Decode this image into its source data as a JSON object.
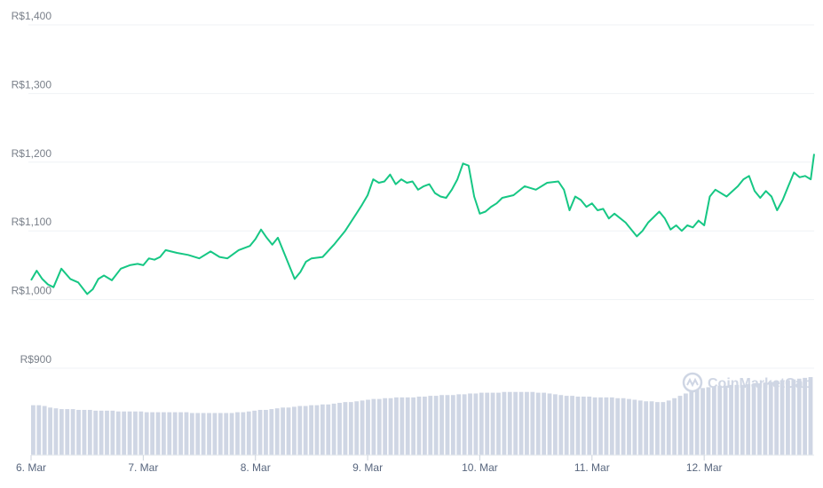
{
  "chart_data": {
    "type": "line",
    "currency_prefix": "R$",
    "y_ticks": [
      "R$1,400",
      "R$1,300",
      "R$1,200",
      "R$1,100",
      "R$1,000",
      "R$900"
    ],
    "y_tick_values": [
      1400,
      1300,
      1200,
      1100,
      1000,
      900
    ],
    "x_ticks": [
      "6. Mar",
      "7. Mar",
      "8. Mar",
      "9. Mar",
      "10. Mar",
      "11. Mar",
      "12. Mar"
    ],
    "x_tick_days": [
      6,
      7,
      8,
      9,
      10,
      11,
      12
    ],
    "ylim": [
      900,
      1400
    ],
    "xlim": [
      6,
      12.98
    ],
    "grid": true,
    "colors": {
      "line": "#16c784",
      "volume": "#cfd6e4",
      "grid": "#eff2f5"
    },
    "series": [
      {
        "x": [
          6.0,
          6.05,
          6.1,
          6.15,
          6.2,
          6.27,
          6.35,
          6.42,
          6.5,
          6.55,
          6.6,
          6.65,
          6.72,
          6.8,
          6.88,
          6.95,
          7.0,
          7.05,
          7.1,
          7.15,
          7.2,
          7.3,
          7.4,
          7.5,
          7.6,
          7.68,
          7.75,
          7.85,
          7.95,
          8.0,
          8.05,
          8.1,
          8.15,
          8.2,
          8.25,
          8.3,
          8.35,
          8.4,
          8.45,
          8.5,
          8.6,
          8.7,
          8.8,
          8.9,
          8.95,
          9.0,
          9.05,
          9.1,
          9.15,
          9.2,
          9.25,
          9.3,
          9.35,
          9.4,
          9.45,
          9.5,
          9.55,
          9.6,
          9.65,
          9.7,
          9.75,
          9.8,
          9.85,
          9.9,
          9.95,
          10.0,
          10.05,
          10.1,
          10.15,
          10.2,
          10.3,
          10.4,
          10.5,
          10.6,
          10.7,
          10.75,
          10.8,
          10.85,
          10.9,
          10.95,
          11.0,
          11.05,
          11.1,
          11.15,
          11.2,
          11.3,
          11.4,
          11.45,
          11.5,
          11.6,
          11.65,
          11.7,
          11.75,
          11.8,
          11.85,
          11.9,
          11.95,
          12.0,
          12.05,
          12.1,
          12.2,
          12.3,
          12.35,
          12.4,
          12.45,
          12.5,
          12.55,
          12.6,
          12.65,
          12.7,
          12.75,
          12.8,
          12.85,
          12.9,
          12.95,
          12.98
        ],
        "y": [
          1028,
          1042,
          1030,
          1022,
          1018,
          1045,
          1030,
          1025,
          1008,
          1015,
          1030,
          1035,
          1028,
          1045,
          1050,
          1052,
          1050,
          1060,
          1058,
          1062,
          1072,
          1068,
          1065,
          1060,
          1070,
          1062,
          1060,
          1072,
          1078,
          1088,
          1102,
          1090,
          1080,
          1090,
          1070,
          1050,
          1030,
          1040,
          1055,
          1060,
          1062,
          1080,
          1100,
          1125,
          1138,
          1152,
          1175,
          1170,
          1172,
          1182,
          1168,
          1175,
          1170,
          1172,
          1160,
          1165,
          1168,
          1155,
          1150,
          1148,
          1160,
          1175,
          1198,
          1195,
          1150,
          1125,
          1128,
          1135,
          1140,
          1148,
          1152,
          1165,
          1160,
          1170,
          1172,
          1160,
          1130,
          1150,
          1145,
          1135,
          1140,
          1130,
          1132,
          1118,
          1125,
          1112,
          1092,
          1100,
          1112,
          1128,
          1118,
          1102,
          1108,
          1100,
          1108,
          1105,
          1115,
          1108,
          1150,
          1160,
          1150,
          1165,
          1175,
          1180,
          1158,
          1148,
          1158,
          1150,
          1130,
          1145,
          1165,
          1185,
          1178,
          1180,
          1175,
          1212
        ]
      }
    ],
    "volume": [
      64,
      64,
      63,
      61,
      60,
      59,
      59,
      59,
      58,
      58,
      58,
      57,
      57,
      57,
      57,
      56,
      56,
      56,
      56,
      56,
      55,
      55,
      55,
      55,
      55,
      55,
      55,
      55,
      54,
      54,
      54,
      54,
      54,
      54,
      54,
      54,
      55,
      55,
      56,
      57,
      58,
      58,
      59,
      60,
      61,
      61,
      62,
      63,
      63,
      64,
      64,
      65,
      65,
      66,
      67,
      68,
      68,
      69,
      70,
      71,
      72,
      72,
      73,
      73,
      74,
      74,
      74,
      74,
      75,
      75,
      76,
      76,
      77,
      77,
      77,
      78,
      78,
      79,
      79,
      80,
      80,
      80,
      80,
      81,
      81,
      81,
      81,
      81,
      81,
      80,
      80,
      79,
      78,
      77,
      76,
      76,
      75,
      75,
      75,
      74,
      74,
      74,
      74,
      73,
      73,
      72,
      71,
      70,
      69,
      69,
      68,
      68,
      70,
      73,
      76,
      79,
      82,
      84,
      86,
      87,
      88,
      89,
      89,
      90,
      90,
      90,
      91,
      91,
      92,
      93,
      94,
      95,
      96,
      96,
      97,
      98,
      99,
      100
    ]
  },
  "watermark": {
    "text": "CoinMarketCap",
    "icon": "coinmarketcap-logo"
  }
}
